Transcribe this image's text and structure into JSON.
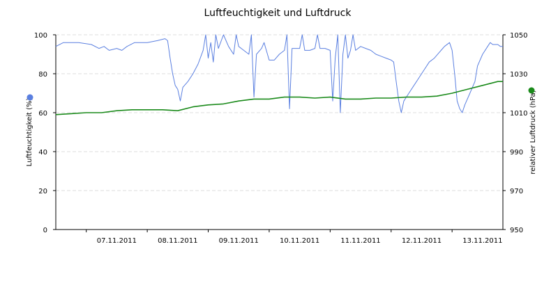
{
  "chart_data": {
    "type": "line",
    "title": "Luftfeuchtigkeit und Luftdruck",
    "grid": true,
    "x": {
      "range": [
        "2011-11-06T12:00",
        "2011-11-13T20:00"
      ],
      "tick_labels": [
        "07.11.2011",
        "08.11.2011",
        "09.11.2011",
        "10.11.2011",
        "11.11.2011",
        "12.11.2011",
        "13.11.2011"
      ],
      "tick_dates": [
        "2011-11-07T12:00",
        "2011-11-08T12:00",
        "2011-11-09T12:00",
        "2011-11-10T12:00",
        "2011-11-11T12:00",
        "2011-11-12T12:00",
        "2011-11-13T12:00"
      ]
    },
    "y_left": {
      "label": "Luftfeuchtigkeit (%)",
      "range": [
        0,
        100
      ],
      "ticks": [
        0,
        20,
        40,
        60,
        80,
        100
      ]
    },
    "y_right": {
      "label": "relativer Luftdruck (hPa)",
      "range": [
        950,
        1050
      ],
      "ticks": [
        950,
        970,
        990,
        1010,
        1030,
        1050
      ]
    },
    "series": [
      {
        "name": "Luftfeuchtigkeit (%)",
        "axis": "left",
        "color": "#5a7fe0",
        "points": [
          [
            "2011-11-06T12:00",
            94
          ],
          [
            "2011-11-06T15:00",
            96
          ],
          [
            "2011-11-06T21:00",
            96
          ],
          [
            "2011-11-07T02:00",
            95
          ],
          [
            "2011-11-07T05:00",
            93
          ],
          [
            "2011-11-07T07:00",
            94
          ],
          [
            "2011-11-07T09:00",
            92
          ],
          [
            "2011-11-07T12:00",
            93
          ],
          [
            "2011-11-07T14:00",
            92
          ],
          [
            "2011-11-07T16:00",
            94
          ],
          [
            "2011-11-07T19:00",
            96
          ],
          [
            "2011-11-08T00:00",
            96
          ],
          [
            "2011-11-08T04:00",
            97
          ],
          [
            "2011-11-08T07:00",
            98
          ],
          [
            "2011-11-08T08:00",
            97
          ],
          [
            "2011-11-08T09:00",
            88
          ],
          [
            "2011-11-08T10:00",
            80
          ],
          [
            "2011-11-08T11:00",
            74
          ],
          [
            "2011-11-08T12:00",
            72
          ],
          [
            "2011-11-08T13:00",
            66
          ],
          [
            "2011-11-08T14:00",
            73
          ],
          [
            "2011-11-08T16:00",
            76
          ],
          [
            "2011-11-08T18:00",
            80
          ],
          [
            "2011-11-08T20:00",
            85
          ],
          [
            "2011-11-08T22:00",
            92
          ],
          [
            "2011-11-08T23:00",
            100
          ],
          [
            "2011-11-09T00:00",
            88
          ],
          [
            "2011-11-09T01:00",
            96
          ],
          [
            "2011-11-09T02:00",
            86
          ],
          [
            "2011-11-09T03:00",
            100
          ],
          [
            "2011-11-09T04:00",
            93
          ],
          [
            "2011-11-09T06:00",
            100
          ],
          [
            "2011-11-09T08:00",
            94
          ],
          [
            "2011-11-09T10:00",
            90
          ],
          [
            "2011-11-09T11:00",
            100
          ],
          [
            "2011-11-09T12:00",
            94
          ],
          [
            "2011-11-09T14:00",
            92
          ],
          [
            "2011-11-09T16:00",
            90
          ],
          [
            "2011-11-09T17:00",
            100
          ],
          [
            "2011-11-09T18:00",
            68
          ],
          [
            "2011-11-09T19:00",
            90
          ],
          [
            "2011-11-09T21:00",
            93
          ],
          [
            "2011-11-09T22:00",
            96
          ],
          [
            "2011-11-10T00:00",
            87
          ],
          [
            "2011-11-10T02:00",
            87
          ],
          [
            "2011-11-10T04:00",
            90
          ],
          [
            "2011-11-10T06:00",
            92
          ],
          [
            "2011-11-10T07:00",
            100
          ],
          [
            "2011-11-10T08:00",
            62
          ],
          [
            "2011-11-10T09:00",
            93
          ],
          [
            "2011-11-10T12:00",
            93
          ],
          [
            "2011-11-10T13:00",
            100
          ],
          [
            "2011-11-10T14:00",
            92
          ],
          [
            "2011-11-10T16:00",
            92
          ],
          [
            "2011-11-10T18:00",
            93
          ],
          [
            "2011-11-10T19:00",
            100
          ],
          [
            "2011-11-10T20:00",
            93
          ],
          [
            "2011-11-10T22:00",
            93
          ],
          [
            "2011-11-11T00:00",
            92
          ],
          [
            "2011-11-11T01:00",
            66
          ],
          [
            "2011-11-11T02:00",
            88
          ],
          [
            "2011-11-11T03:00",
            100
          ],
          [
            "2011-11-11T04:00",
            60
          ],
          [
            "2011-11-11T05:00",
            90
          ],
          [
            "2011-11-11T06:00",
            100
          ],
          [
            "2011-11-11T07:00",
            88
          ],
          [
            "2011-11-11T08:00",
            92
          ],
          [
            "2011-11-11T09:00",
            100
          ],
          [
            "2011-11-11T10:00",
            92
          ],
          [
            "2011-11-11T12:00",
            94
          ],
          [
            "2011-11-11T14:00",
            93
          ],
          [
            "2011-11-11T16:00",
            92
          ],
          [
            "2011-11-11T18:00",
            90
          ],
          [
            "2011-11-11T20:00",
            89
          ],
          [
            "2011-11-11T22:00",
            88
          ],
          [
            "2011-11-12T00:00",
            87
          ],
          [
            "2011-11-12T01:00",
            86
          ],
          [
            "2011-11-12T02:00",
            76
          ],
          [
            "2011-11-12T03:00",
            66
          ],
          [
            "2011-11-12T04:00",
            60
          ],
          [
            "2011-11-12T05:00",
            66
          ],
          [
            "2011-11-12T07:00",
            70
          ],
          [
            "2011-11-12T09:00",
            74
          ],
          [
            "2011-11-12T11:00",
            78
          ],
          [
            "2011-11-12T13:00",
            82
          ],
          [
            "2011-11-12T15:00",
            86
          ],
          [
            "2011-11-12T17:00",
            88
          ],
          [
            "2011-11-12T19:00",
            91
          ],
          [
            "2011-11-12T21:00",
            94
          ],
          [
            "2011-11-12T23:00",
            96
          ],
          [
            "2011-11-13T00:00",
            92
          ],
          [
            "2011-11-13T01:00",
            80
          ],
          [
            "2011-11-13T02:00",
            66
          ],
          [
            "2011-11-13T03:00",
            62
          ],
          [
            "2011-11-13T04:00",
            60
          ],
          [
            "2011-11-13T05:00",
            64
          ],
          [
            "2011-11-13T07:00",
            70
          ],
          [
            "2011-11-13T09:00",
            76
          ],
          [
            "2011-11-13T10:00",
            84
          ],
          [
            "2011-11-13T12:00",
            90
          ],
          [
            "2011-11-13T14:00",
            94
          ],
          [
            "2011-11-13T15:00",
            96
          ],
          [
            "2011-11-13T16:00",
            95
          ],
          [
            "2011-11-13T18:00",
            95
          ],
          [
            "2011-11-13T19:00",
            94
          ],
          [
            "2011-11-13T20:00",
            94
          ]
        ]
      },
      {
        "name": "relativer Luftdruck (hPa)",
        "axis": "right",
        "color": "#1a8a1a",
        "points": [
          [
            "2011-11-06T12:00",
            1009
          ],
          [
            "2011-11-06T18:00",
            1009.5
          ],
          [
            "2011-11-07T00:00",
            1010
          ],
          [
            "2011-11-07T06:00",
            1010
          ],
          [
            "2011-11-07T12:00",
            1011
          ],
          [
            "2011-11-07T18:00",
            1011.5
          ],
          [
            "2011-11-08T00:00",
            1011.5
          ],
          [
            "2011-11-08T06:00",
            1011.5
          ],
          [
            "2011-11-08T12:00",
            1011
          ],
          [
            "2011-11-08T18:00",
            1013
          ],
          [
            "2011-11-09T00:00",
            1014
          ],
          [
            "2011-11-09T06:00",
            1014.5
          ],
          [
            "2011-11-09T12:00",
            1016
          ],
          [
            "2011-11-09T18:00",
            1017
          ],
          [
            "2011-11-10T00:00",
            1017
          ],
          [
            "2011-11-10T06:00",
            1018
          ],
          [
            "2011-11-10T12:00",
            1018
          ],
          [
            "2011-11-10T18:00",
            1017.5
          ],
          [
            "2011-11-11T00:00",
            1018
          ],
          [
            "2011-11-11T06:00",
            1017
          ],
          [
            "2011-11-11T12:00",
            1017
          ],
          [
            "2011-11-11T18:00",
            1017.5
          ],
          [
            "2011-11-12T00:00",
            1017.5
          ],
          [
            "2011-11-12T06:00",
            1018
          ],
          [
            "2011-11-12T12:00",
            1018
          ],
          [
            "2011-11-12T18:00",
            1018.5
          ],
          [
            "2011-11-13T00:00",
            1020
          ],
          [
            "2011-11-13T06:00",
            1022
          ],
          [
            "2011-11-13T12:00",
            1024
          ],
          [
            "2011-11-13T18:00",
            1026
          ],
          [
            "2011-11-13T20:00",
            1026
          ]
        ]
      }
    ]
  }
}
